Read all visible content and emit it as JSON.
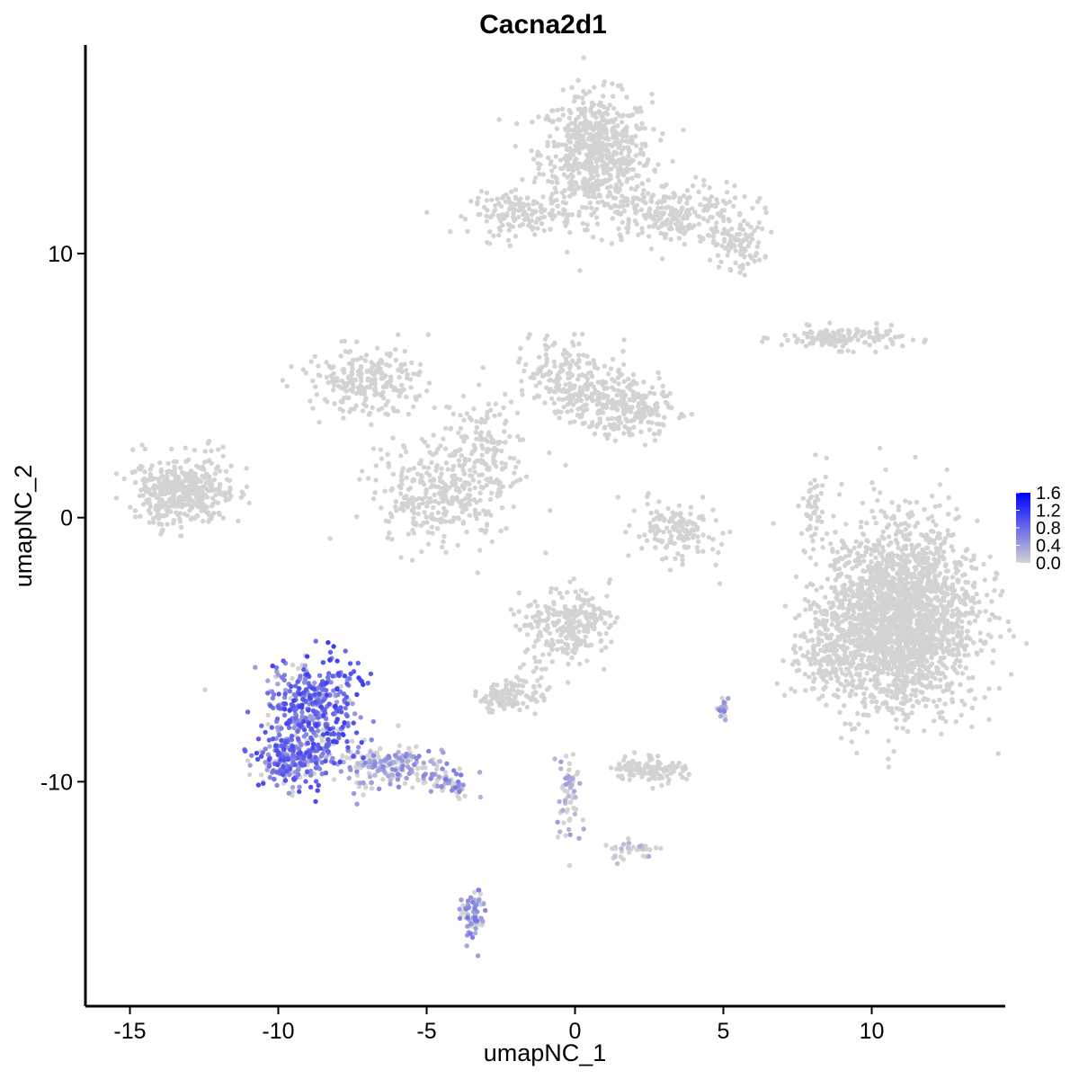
{
  "chart_data": {
    "type": "scatter",
    "title": "Cacna2d1",
    "xlabel": "umapNC_1",
    "ylabel": "umapNC_2",
    "xlim": [
      -16.5,
      14.5
    ],
    "ylim": [
      -18.5,
      17.9
    ],
    "x_ticks": [
      -15,
      -10,
      -5,
      0,
      5,
      10
    ],
    "x_tick_labels": [
      "-15",
      "-10",
      "-5",
      "0",
      "5",
      "10"
    ],
    "y_ticks": [
      -10,
      0,
      10
    ],
    "y_tick_labels": [
      "-10",
      "0",
      "10"
    ],
    "grid": false,
    "legend": {
      "position": "right",
      "type": "colorbar",
      "min": 0.0,
      "max": 1.6,
      "breaks": [
        0.0,
        0.4,
        0.8,
        1.2,
        1.6
      ],
      "labels": [
        "0.0",
        "0.4",
        "0.8",
        "1.2",
        "1.6"
      ],
      "low_color": "#d3d3d3",
      "high_color": "#0000ff"
    },
    "clusters": [
      {
        "cx": 0.7,
        "cy": 13.8,
        "sx": 1.1,
        "sy": 1.3,
        "n": 650,
        "expr": 0.0
      },
      {
        "cx": 3.2,
        "cy": 11.5,
        "sx": 1.6,
        "sy": 0.7,
        "n": 260,
        "expr": 0.0
      },
      {
        "cx": 5.5,
        "cy": 10.3,
        "sx": 0.5,
        "sy": 0.5,
        "n": 90,
        "expr": 0.0
      },
      {
        "cx": -1.8,
        "cy": 11.5,
        "sx": 1.0,
        "sy": 0.45,
        "n": 150,
        "expr": 0.0
      },
      {
        "cx": 9.0,
        "cy": 6.8,
        "sx": 1.2,
        "sy": 0.25,
        "n": 140,
        "expr": 0.0
      },
      {
        "cx": 11.0,
        "cy": -3.8,
        "sx": 1.5,
        "sy": 2.0,
        "n": 2200,
        "expr": 0.01
      },
      {
        "cx": 8.6,
        "cy": -5.3,
        "sx": 0.7,
        "sy": 1.0,
        "n": 180,
        "expr": 0.0
      },
      {
        "cx": -13.2,
        "cy": 1.0,
        "sx": 1.0,
        "sy": 0.75,
        "n": 420,
        "expr": 0.0
      },
      {
        "cx": -7.0,
        "cy": 5.2,
        "sx": 1.2,
        "sy": 0.7,
        "n": 230,
        "expr": 0.0
      },
      {
        "cx": -4.5,
        "cy": 0.8,
        "sx": 1.3,
        "sy": 1.1,
        "n": 320,
        "expr": 0.0
      },
      {
        "cx": -3.0,
        "cy": 2.8,
        "sx": 0.9,
        "sy": 1.1,
        "n": 130,
        "expr": 0.0
      },
      {
        "cx": 0.0,
        "cy": 5.2,
        "sx": 1.0,
        "sy": 0.9,
        "n": 220,
        "expr": 0.0
      },
      {
        "cx": 1.8,
        "cy": 4.1,
        "sx": 0.9,
        "sy": 0.6,
        "n": 230,
        "expr": 0.0
      },
      {
        "cx": 3.3,
        "cy": -0.5,
        "sx": 0.8,
        "sy": 0.6,
        "n": 140,
        "expr": 0.0
      },
      {
        "cx": 8.0,
        "cy": 0.5,
        "sx": 0.2,
        "sy": 0.8,
        "n": 45,
        "expr": 0.0
      },
      {
        "cx": -0.3,
        "cy": -4.0,
        "sx": 0.9,
        "sy": 0.8,
        "n": 260,
        "expr": 0.0
      },
      {
        "cx": -1.6,
        "cy": -6.5,
        "sx": 0.6,
        "sy": 0.5,
        "n": 60,
        "expr": 0.0
      },
      {
        "cx": -2.6,
        "cy": -6.9,
        "sx": 0.4,
        "sy": 0.3,
        "n": 70,
        "expr": 0.03
      },
      {
        "cx": 2.5,
        "cy": -9.5,
        "sx": 0.7,
        "sy": 0.3,
        "n": 120,
        "expr": 0.0
      },
      {
        "cx": -8.8,
        "cy": -7.3,
        "sx": 0.9,
        "sy": 1.2,
        "n": 420,
        "expr": 0.55
      },
      {
        "cx": -9.6,
        "cy": -9.2,
        "sx": 0.6,
        "sy": 0.55,
        "n": 220,
        "expr": 0.5
      },
      {
        "cx": -6.3,
        "cy": -9.4,
        "sx": 1.1,
        "sy": 0.5,
        "n": 200,
        "expr": 0.3
      },
      {
        "cx": -4.4,
        "cy": -10.1,
        "sx": 0.45,
        "sy": 0.25,
        "n": 60,
        "expr": 0.35
      },
      {
        "cx": -3.4,
        "cy": -15.0,
        "sx": 0.25,
        "sy": 0.6,
        "n": 70,
        "expr": 0.35
      },
      {
        "cx": -0.2,
        "cy": -10.5,
        "sx": 0.25,
        "sy": 1.1,
        "n": 60,
        "expr": 0.2
      },
      {
        "cx": 2.0,
        "cy": -12.6,
        "sx": 0.5,
        "sy": 0.25,
        "n": 35,
        "expr": 0.15
      },
      {
        "cx": 5.0,
        "cy": -7.3,
        "sx": 0.15,
        "sy": 0.2,
        "n": 20,
        "expr": 0.3
      }
    ]
  }
}
